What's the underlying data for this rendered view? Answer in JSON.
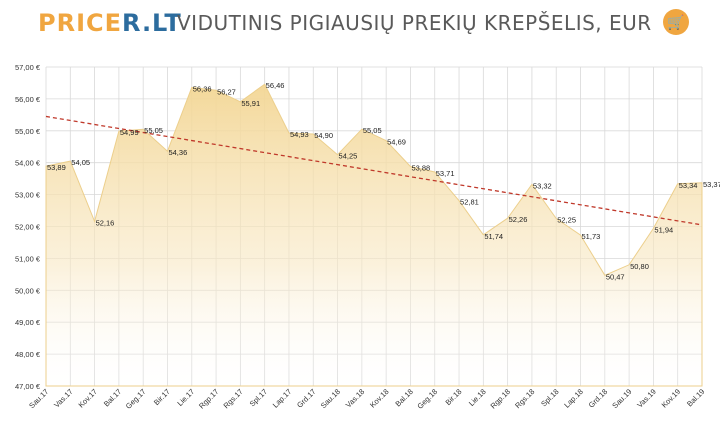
{
  "header": {
    "logo_part1": "PRICE",
    "logo_part2": "R.LT",
    "title": "VIDUTINIS PIGIAUSIŲ PREKIŲ KREPŠELIS, EUR",
    "cart_icon": "shopping-cart-icon"
  },
  "colors": {
    "area_fill": "#f5dca0",
    "area_line": "#ecd08a",
    "trend": "#c0392b",
    "accent": "#f0a640"
  },
  "chart_data": {
    "type": "area",
    "title": "VIDUTINIS PIGIAUSIŲ PREKIŲ KREPŠELIS, EUR",
    "categories": [
      "Sau.17",
      "Vas.17",
      "Kov.17",
      "Bal.17",
      "Geg.17",
      "Bir.17",
      "Lie.17",
      "Rgp.17",
      "Rgs.17",
      "Spl.17",
      "Lap.17",
      "Grd.17",
      "Sau.18",
      "Vas.18",
      "Kov.18",
      "Bal.18",
      "Geg.18",
      "Bir.18",
      "Lie.18",
      "Rgp.18",
      "Rgs.18",
      "Spl.18",
      "Lap.18",
      "Grd.18",
      "Sau.19",
      "Vas.19",
      "Kov.19",
      "Bal.19"
    ],
    "values": [
      53.89,
      54.05,
      52.16,
      54.99,
      55.05,
      54.36,
      56.36,
      56.27,
      55.91,
      56.46,
      54.93,
      54.9,
      54.25,
      55.05,
      54.69,
      53.88,
      53.71,
      52.81,
      51.74,
      52.26,
      53.32,
      52.25,
      51.73,
      50.47,
      50.8,
      51.94,
      53.34,
      53.37
    ],
    "data_labels": [
      "53,89",
      "54,05",
      "52,16",
      "54,99",
      "55,05",
      "54,36",
      "56,36",
      "56,27",
      "55,91",
      "56,46",
      "54,93",
      "54,90",
      "54,25",
      "55,05",
      "54,69",
      "53,88",
      "53,71",
      "52,81",
      "51,74",
      "52,26",
      "53,32",
      "52,25",
      "51,73",
      "50,47",
      "50,80",
      "51,94",
      "53,34",
      "53,37"
    ],
    "y_ticks": [
      47,
      48,
      49,
      50,
      51,
      52,
      53,
      54,
      55,
      56,
      57
    ],
    "y_tick_labels": [
      "47,00 €",
      "48,00 €",
      "49,00 €",
      "50,00 €",
      "51,00 €",
      "52,00 €",
      "53,00 €",
      "54,00 €",
      "55,00 €",
      "56,00 €",
      "57,00 €"
    ],
    "ylim": [
      47,
      57
    ],
    "trendline": {
      "start": 55.45,
      "end": 52.05
    },
    "grid": true,
    "legend": "none"
  }
}
